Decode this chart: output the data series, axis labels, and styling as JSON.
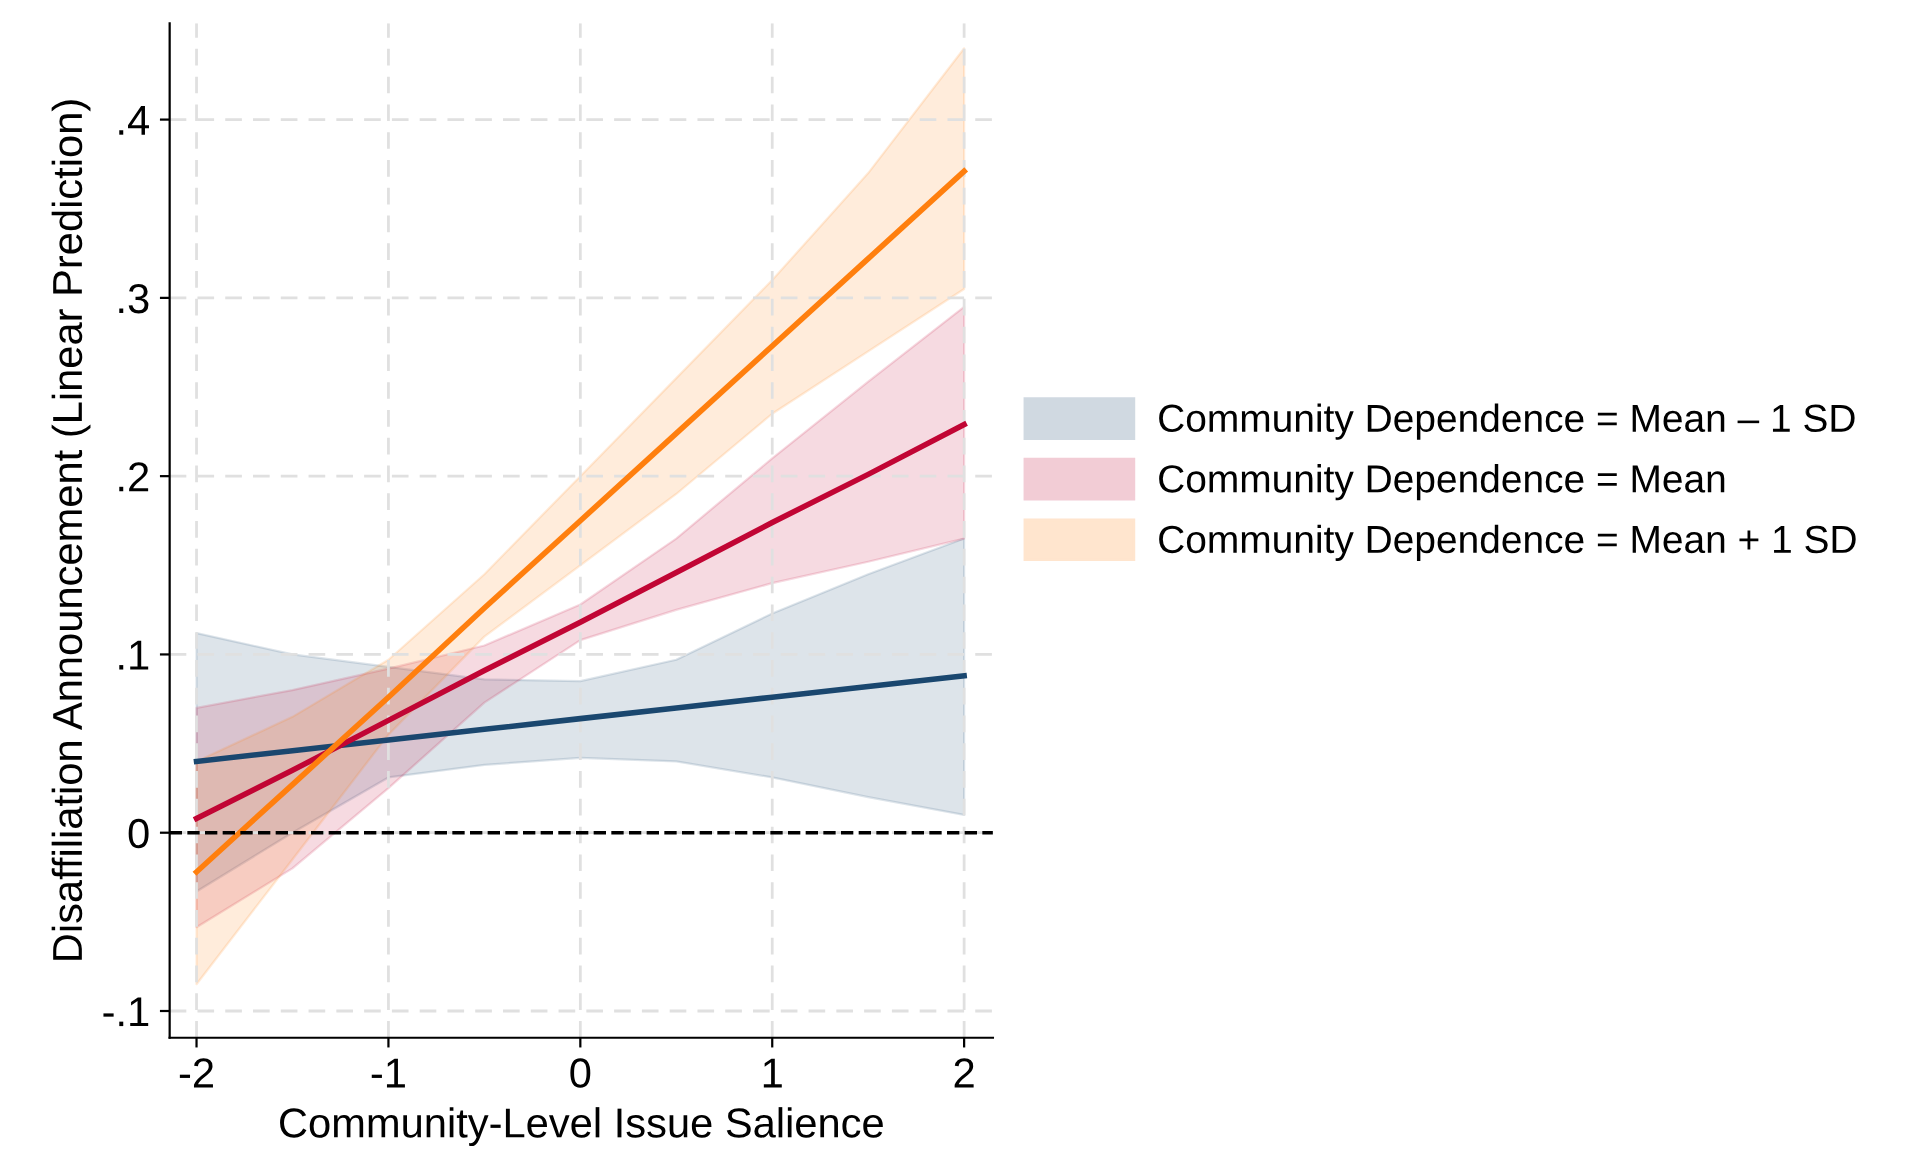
{
  "chart_data": {
    "type": "line",
    "xlabel": "Community-Level Issue Salience",
    "ylabel": "Disaffiliation Announcement (Linear Prediction)",
    "x": [
      -2,
      -1.5,
      -1,
      -0.5,
      0,
      0.5,
      1,
      1.5,
      2
    ],
    "series": [
      {
        "name": "Community Dependence = Mean – 1 SD",
        "color": "#1a476f",
        "values": [
          0.04,
          0.046,
          0.052,
          0.058,
          0.064,
          0.07,
          0.076,
          0.082,
          0.088
        ],
        "lower": [
          -0.033,
          0,
          0.031,
          0.038,
          0.042,
          0.04,
          0.031,
          0.02,
          0.01
        ],
        "upper": [
          0.112,
          0.1,
          0.093,
          0.086,
          0.085,
          0.097,
          0.123,
          0.145,
          0.165
        ]
      },
      {
        "name": "Community Dependence = Mean",
        "color": "#c10534",
        "values": [
          0.008,
          0.035,
          0.063,
          0.091,
          0.118,
          0.146,
          0.174,
          0.201,
          0.229
        ],
        "lower": [
          -0.053,
          -0.02,
          0.025,
          0.073,
          0.108,
          0.125,
          0.14,
          0.152,
          0.165
        ],
        "upper": [
          0.07,
          0.08,
          0.092,
          0.105,
          0.128,
          0.165,
          0.21,
          0.253,
          0.295
        ]
      },
      {
        "name": "Community Dependence = Mean + 1 SD",
        "color": "#ff7f0e",
        "values": [
          -0.022,
          0.027,
          0.076,
          0.126,
          0.175,
          0.224,
          0.273,
          0.322,
          0.371
        ],
        "lower": [
          -0.085,
          -0.015,
          0.055,
          0.11,
          0.15,
          0.19,
          0.235,
          0.27,
          0.305
        ],
        "upper": [
          0.04,
          0.065,
          0.097,
          0.145,
          0.2,
          0.255,
          0.31,
          0.37,
          0.44
        ]
      }
    ],
    "xlim": [
      -2.14,
      2.15
    ],
    "ylim": [
      -0.115,
      0.454
    ],
    "xticks": [
      -2,
      -1,
      0,
      1,
      2
    ],
    "yticks": [
      {
        "value": -0.1,
        "label": "-.1"
      },
      0,
      {
        "value": 0.1,
        "label": ".1"
      },
      {
        "value": 0.2,
        "label": ".2"
      },
      {
        "value": 0.3,
        "label": ".3"
      },
      {
        "value": 0.4,
        "label": ".4"
      }
    ],
    "ref_lines": [
      {
        "axis": "y",
        "value": 0,
        "color": "#000000",
        "line_style": "dashed"
      }
    ],
    "grid": true,
    "legend": "right",
    "marker": "none",
    "line_style": "solid"
  }
}
